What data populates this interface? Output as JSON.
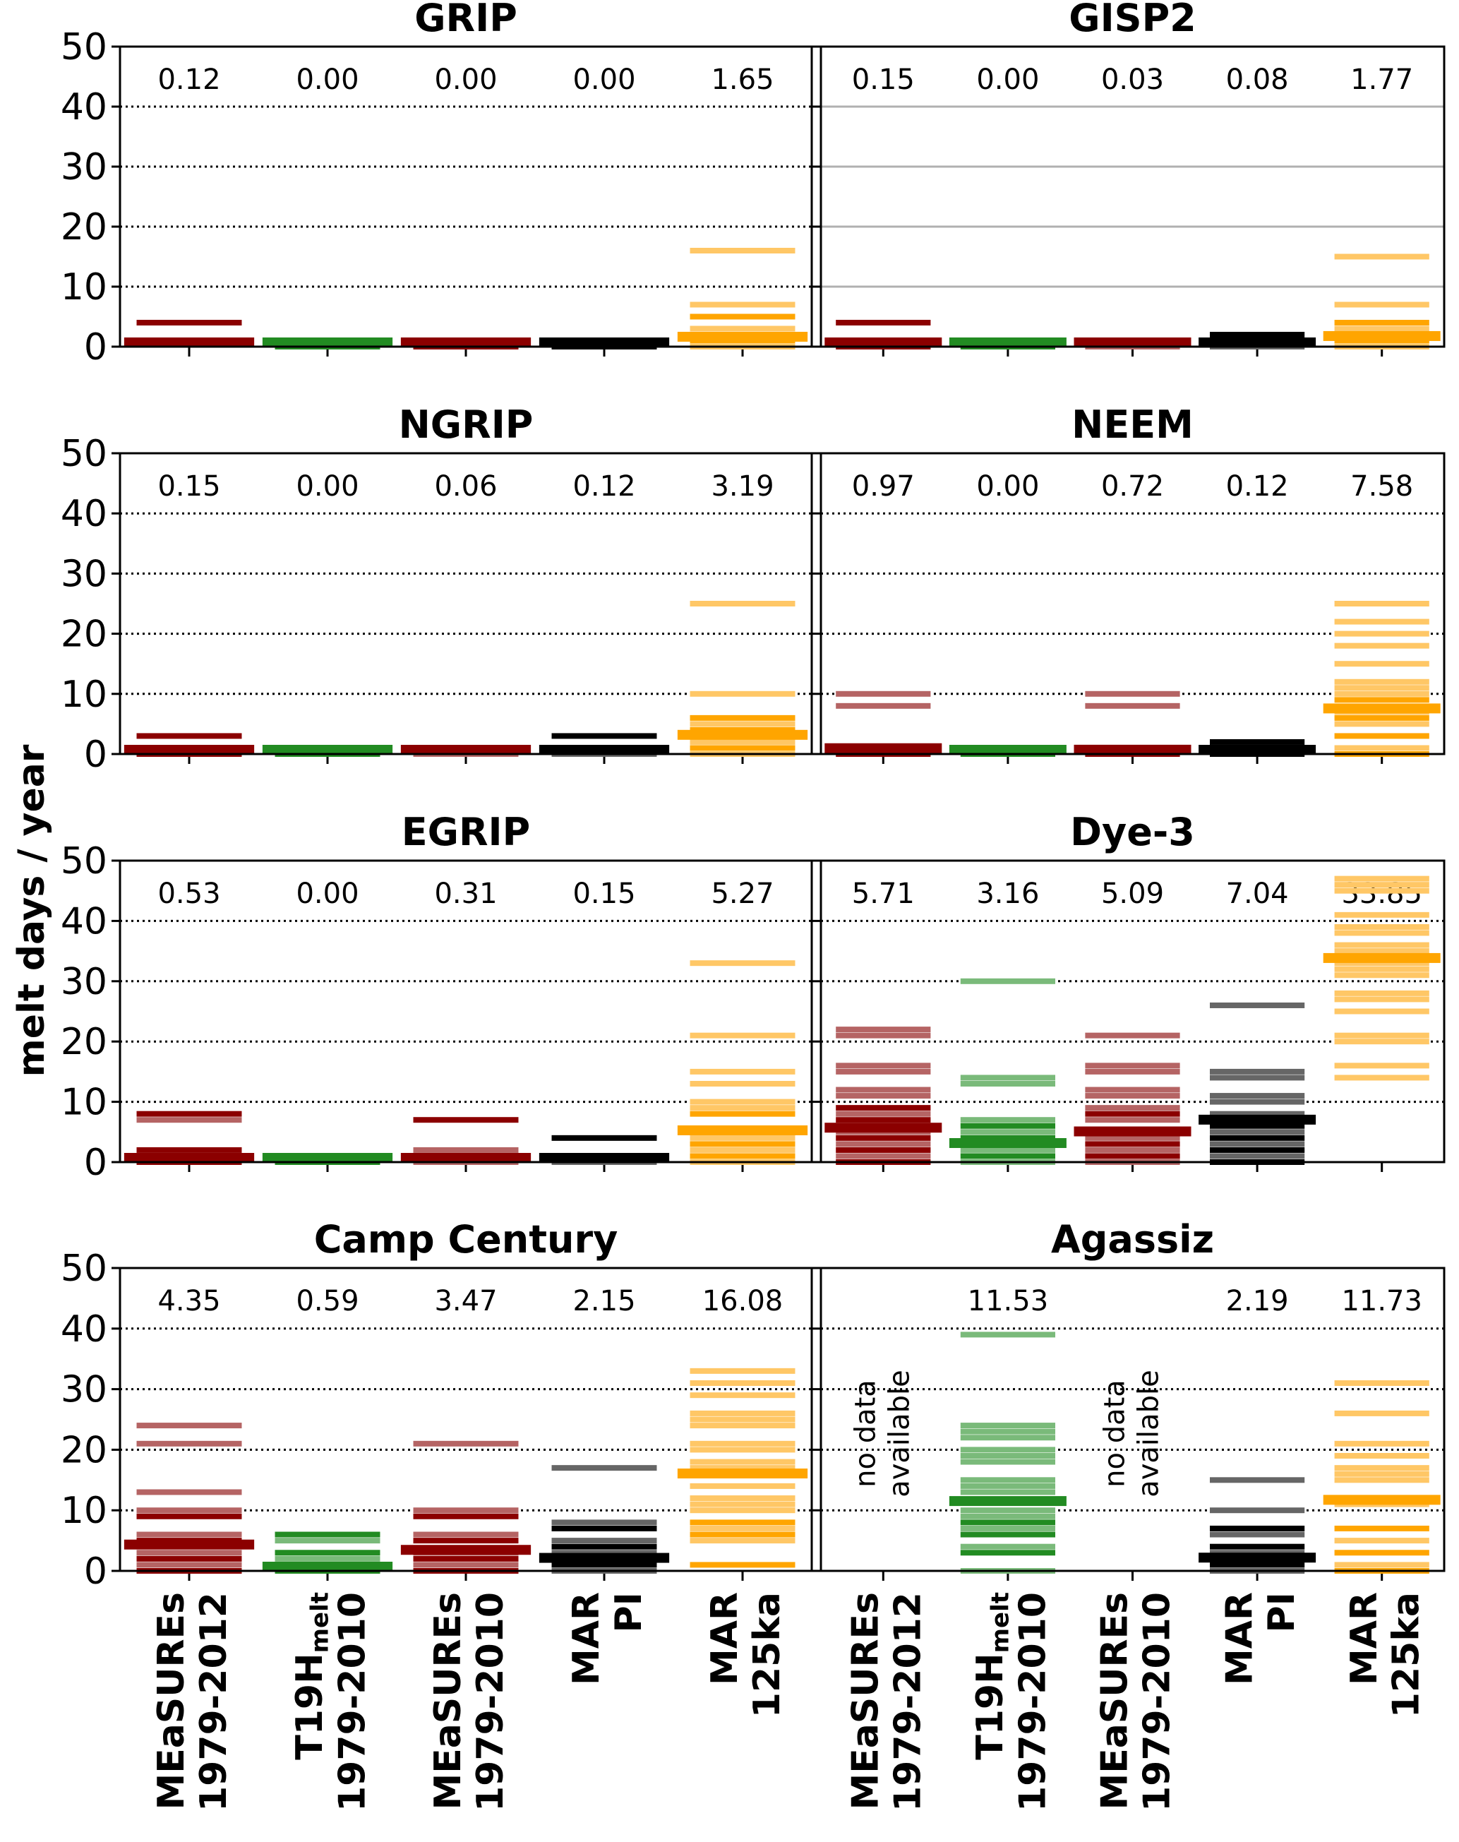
{
  "chart_data": {
    "type": "strip",
    "ylabel": "melt days / year",
    "ylim": [
      0,
      50
    ],
    "yticks": [
      "0",
      "10",
      "20",
      "30",
      "40",
      "50"
    ],
    "grid": "dotted horizontal at 10,20,30,40 (solid gray in GISP2 panel)",
    "categories": [
      {
        "line1": "MEaSUREs",
        "line2": "1979-2012",
        "color": "#8b0000"
      },
      {
        "line1": "T19H",
        "sub": "melt",
        "line2": "1979-2010",
        "color": "#228b22"
      },
      {
        "line1": "MEaSUREs",
        "line2": "1979-2010",
        "color": "#8b0000"
      },
      {
        "line1": "MAR",
        "line2": "PI",
        "color": "#000000"
      },
      {
        "line1": "MAR",
        "line2": "125ka",
        "color": "#ffa500"
      }
    ],
    "no_data_label": "no data available",
    "panels": [
      {
        "title": "GRIP",
        "means": [
          "0.12",
          "0.00",
          "0.00",
          "0.00",
          "1.65"
        ],
        "mean_values": [
          0.12,
          0,
          0,
          0,
          1.65
        ],
        "years": [
          [
            4,
            0.5
          ],
          [
            0
          ],
          [
            0
          ],
          [
            0
          ],
          [
            16,
            7,
            5,
            3,
            1,
            0
          ]
        ]
      },
      {
        "title": "GISP2",
        "means": [
          "0.15",
          "0.00",
          "0.03",
          "0.08",
          "1.77"
        ],
        "mean_values": [
          0.15,
          0,
          0.03,
          0.08,
          1.77
        ],
        "years": [
          [
            4,
            1,
            0
          ],
          [
            0
          ],
          [
            1,
            0
          ],
          [
            2,
            0
          ],
          [
            15,
            7,
            4,
            3,
            1,
            0
          ]
        ]
      },
      {
        "title": "NGRIP",
        "means": [
          "0.15",
          "0.00",
          "0.06",
          "0.12",
          "3.19"
        ],
        "mean_values": [
          0.15,
          0,
          0.06,
          0.12,
          3.19
        ],
        "years": [
          [
            3,
            1,
            0
          ],
          [
            0
          ],
          [
            1,
            0
          ],
          [
            3,
            0
          ],
          [
            25,
            10,
            6,
            5,
            4,
            2,
            1,
            0
          ]
        ]
      },
      {
        "title": "NEEM",
        "means": [
          "0.97",
          "0.00",
          "0.72",
          "0.12",
          "7.58"
        ],
        "mean_values": [
          0.97,
          0,
          0.72,
          0.12,
          7.58
        ],
        "years": [
          [
            10,
            8,
            0
          ],
          [
            0
          ],
          [
            10,
            8,
            0
          ],
          [
            2,
            1,
            0
          ],
          [
            25,
            22,
            20,
            18,
            15,
            12,
            11,
            10,
            9,
            7,
            6,
            5,
            3,
            1,
            0
          ]
        ]
      },
      {
        "title": "EGRIP",
        "means": [
          "0.53",
          "0.00",
          "0.31",
          "0.15",
          "5.27"
        ],
        "mean_values": [
          0.53,
          0,
          0.31,
          0.15,
          5.27
        ],
        "years": [
          [
            8,
            7,
            2,
            1,
            0
          ],
          [
            0
          ],
          [
            7,
            2,
            1,
            0
          ],
          [
            4,
            0
          ],
          [
            33,
            21,
            15,
            13,
            10,
            9,
            8,
            4,
            3,
            2,
            1,
            0
          ]
        ]
      },
      {
        "title": "Dye-3",
        "means": [
          "5.71",
          "3.16",
          "5.09",
          "7.04",
          "33.85"
        ],
        "mean_values": [
          5.71,
          3.16,
          5.09,
          7.04,
          33.85
        ],
        "years": [
          [
            22,
            21,
            16,
            15,
            12,
            11,
            9,
            8,
            7,
            5,
            4,
            3,
            2,
            1,
            0
          ],
          [
            30,
            14,
            13,
            7,
            6,
            5,
            4,
            2,
            1,
            0
          ],
          [
            21,
            16,
            15,
            12,
            11,
            9,
            8,
            7,
            5,
            4,
            3,
            2,
            1,
            0
          ],
          [
            26,
            15,
            14,
            11,
            10,
            8,
            6,
            5,
            4,
            3,
            2,
            1,
            0
          ],
          [
            47,
            46,
            45,
            41,
            39,
            38,
            36,
            35,
            33,
            32,
            31,
            28,
            27,
            25,
            21,
            20,
            16,
            14
          ]
        ]
      },
      {
        "title": "Camp Century",
        "means": [
          "4.35",
          "0.59",
          "3.47",
          "2.15",
          "16.08"
        ],
        "mean_values": [
          4.35,
          0.59,
          3.47,
          2.15,
          16.08
        ],
        "years": [
          [
            24,
            21,
            13,
            10,
            9,
            6,
            5,
            3,
            2,
            1,
            0
          ],
          [
            6,
            5,
            3,
            2,
            0
          ],
          [
            21,
            10,
            9,
            6,
            5,
            3,
            2,
            1,
            0
          ],
          [
            17,
            8,
            7,
            5,
            4,
            3,
            1,
            0
          ],
          [
            33,
            31,
            29,
            26,
            25,
            24,
            21,
            20,
            18,
            17,
            14,
            12,
            11,
            10,
            8,
            7,
            6,
            5,
            1
          ]
        ]
      },
      {
        "title": "Agassiz",
        "means": [
          "",
          "11.53",
          "",
          "2.19",
          "11.73"
        ],
        "mean_values": [
          null,
          11.53,
          null,
          2.19,
          11.73
        ],
        "no_data": [
          true,
          false,
          true,
          false,
          false
        ],
        "years": [
          [],
          [
            39,
            24,
            23,
            22,
            20,
            19,
            18,
            15,
            14,
            13,
            10,
            9,
            8,
            7,
            6,
            4,
            3,
            0
          ],
          [],
          [
            15,
            10,
            7,
            6,
            4,
            3,
            1,
            0
          ],
          [
            31,
            26,
            21,
            19,
            17,
            16,
            15,
            11,
            7,
            5,
            3,
            1,
            0
          ]
        ]
      }
    ]
  }
}
